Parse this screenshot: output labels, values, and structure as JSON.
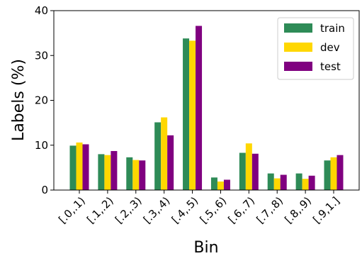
{
  "chart_data": {
    "type": "bar",
    "xlabel": "Bin",
    "ylabel": "Labels (%)",
    "ylim": [
      0,
      40
    ],
    "yticks": [
      0,
      10,
      20,
      30,
      40
    ],
    "categories": [
      "[.0,.1)",
      "[.1,.2)",
      "[.2,.3)",
      "[.3,.4)",
      "[.4,.5)",
      "[.5,.6)",
      "[.6,.7)",
      "[.7,.8)",
      "[.8,.9)",
      "[.9,1.]"
    ],
    "series": [
      {
        "name": "train",
        "color": "#2e8b57",
        "values": [
          9.9,
          8.0,
          7.3,
          15.1,
          33.8,
          2.8,
          8.3,
          3.7,
          3.7,
          6.6
        ]
      },
      {
        "name": "dev",
        "color": "#ffd700",
        "values": [
          10.6,
          7.8,
          6.7,
          16.2,
          33.3,
          1.9,
          10.4,
          2.6,
          2.5,
          7.3
        ]
      },
      {
        "name": "test",
        "color": "#800080",
        "values": [
          10.2,
          8.7,
          6.6,
          12.2,
          36.6,
          2.3,
          8.1,
          3.4,
          3.2,
          7.8
        ]
      }
    ],
    "legend_position": "top-right",
    "grid": false
  }
}
